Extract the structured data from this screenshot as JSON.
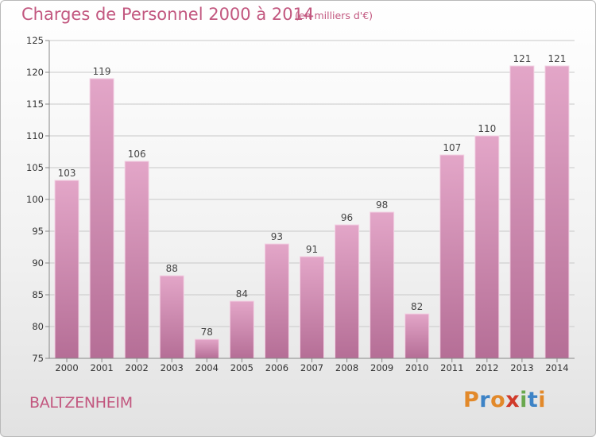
{
  "header": {
    "title": "Charges de Personnel 2000 à 2014",
    "subtitle": "(en milliers d'€)"
  },
  "footer": {
    "commune": "BALTZENHEIM",
    "logo_letters": [
      "P",
      "r",
      "o",
      "x",
      "i",
      "t",
      "i"
    ],
    "logo_colors": [
      "#e2892a",
      "#3d83c6",
      "#e2892a",
      "#d03a2a",
      "#6aa84f",
      "#3d83c6",
      "#e2892a"
    ]
  },
  "chart_data": {
    "type": "bar",
    "title": "Charges de Personnel 2000 à 2014",
    "subtitle": "(en milliers d'€)",
    "categories": [
      "2000",
      "2001",
      "2002",
      "2003",
      "2004",
      "2005",
      "2006",
      "2007",
      "2008",
      "2009",
      "2010",
      "2011",
      "2012",
      "2013",
      "2014"
    ],
    "values": [
      103,
      119,
      106,
      88,
      78,
      84,
      93,
      91,
      96,
      98,
      82,
      107,
      110,
      121,
      121
    ],
    "ylim": [
      75,
      125
    ],
    "yticks": [
      75,
      80,
      85,
      90,
      95,
      100,
      105,
      110,
      115,
      120,
      125
    ],
    "grid": true,
    "bar_color": "#dc98bd",
    "bar_edge_color": "#b85a88",
    "xlabel": "",
    "ylabel": ""
  }
}
